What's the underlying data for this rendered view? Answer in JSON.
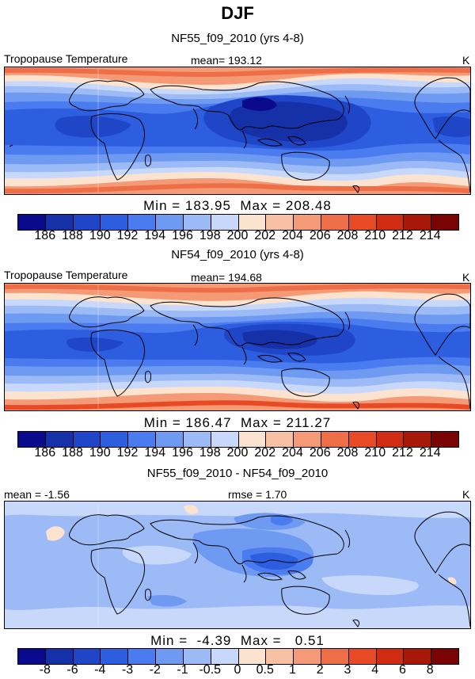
{
  "figure": {
    "season": "DJF",
    "panels": [
      {
        "title": "NF55_f09_2010 (yrs 4-8)",
        "variable": "Tropopause Temperature",
        "mean_text": "mean= 193.12",
        "units": "K",
        "min_label": "Min",
        "min_value": "183.95",
        "max_label": "Max",
        "max_value": "208.48"
      },
      {
        "title": "NF54_f09_2010 (yrs 4-8)",
        "variable": "Tropopause Temperature",
        "mean_text": "mean= 194.68",
        "units": "K",
        "min_label": "Min",
        "min_value": "186.47",
        "max_label": "Max",
        "max_value": "211.27"
      },
      {
        "title": "NF55_f09_2010 - NF54_f09_2010",
        "mean_text": "mean =   -1.56",
        "rmse_text": "rmse =    1.70",
        "units": "K",
        "min_label": "Min",
        "min_value": "-4.39",
        "max_label": "Max",
        "max_value": "0.51"
      }
    ],
    "colorbar_abs": {
      "colors": [
        "#0a0a8c",
        "#1630a8",
        "#2046c8",
        "#2e5ee0",
        "#4a7cf0",
        "#6f9af2",
        "#9bbaf6",
        "#c8d8fa",
        "#fbe3d0",
        "#f8c0a4",
        "#f49a76",
        "#ee6e48",
        "#e84a26",
        "#d02c14",
        "#a81808",
        "#7a0404"
      ],
      "tick_labels": [
        "186",
        "188",
        "190",
        "192",
        "194",
        "196",
        "198",
        "200",
        "202",
        "204",
        "206",
        "208",
        "210",
        "212",
        "214"
      ]
    },
    "colorbar_diff": {
      "colors": [
        "#0a0a8c",
        "#1630a8",
        "#2046c8",
        "#2e5ee0",
        "#4a7cf0",
        "#6f9af2",
        "#9bbaf6",
        "#c8d8fa",
        "#fbe3d0",
        "#f8c0a4",
        "#f49a76",
        "#ee6e48",
        "#e84a26",
        "#d02c14",
        "#a81808",
        "#7a0404"
      ],
      "tick_labels": [
        "-8",
        "-6",
        "-4",
        "-3",
        "-2",
        "-1",
        "-0.5",
        "0",
        "0.5",
        "1",
        "2",
        "3",
        "4",
        "6",
        "8"
      ]
    }
  }
}
